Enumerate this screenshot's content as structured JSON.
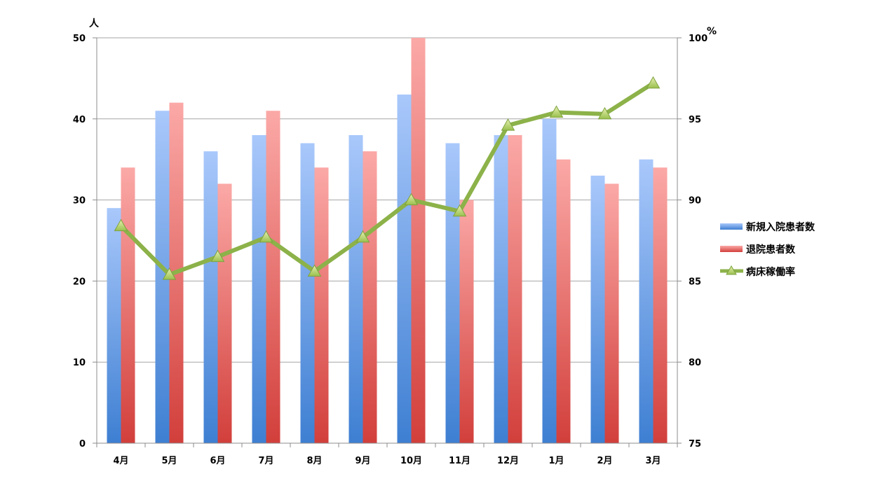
{
  "chart_data": {
    "type": "bar",
    "combo": "bar+line",
    "categories": [
      "4月",
      "5月",
      "6月",
      "7月",
      "8月",
      "9月",
      "10月",
      "11月",
      "12月",
      "1月",
      "2月",
      "3月"
    ],
    "series": [
      {
        "name": "新規入院患者数",
        "type": "bar",
        "axis": "left",
        "color": "#4a86d8",
        "values": [
          29,
          41,
          36,
          38,
          37,
          38,
          43,
          37,
          38,
          40,
          33,
          35
        ]
      },
      {
        "name": "退院患者数",
        "type": "bar",
        "axis": "left",
        "color": "#d8433f",
        "values": [
          34,
          42,
          32,
          41,
          34,
          36,
          50,
          30,
          38,
          35,
          32,
          34
        ]
      },
      {
        "name": "病床稼働率",
        "type": "line",
        "axis": "right",
        "color": "#8cb249",
        "marker": "triangle",
        "values": [
          88.4,
          85.4,
          86.5,
          87.7,
          85.6,
          87.7,
          90.0,
          89.3,
          94.6,
          95.4,
          95.3,
          97.2
        ]
      }
    ],
    "y_left": {
      "unit": "人",
      "range": [
        0,
        50
      ],
      "ticks": [
        "0",
        "10",
        "20",
        "30",
        "40",
        "50"
      ]
    },
    "y_right": {
      "unit": "%",
      "range": [
        75,
        100
      ],
      "ticks": [
        "75",
        "80",
        "85",
        "90",
        "95",
        "100"
      ]
    },
    "grid": true,
    "legend": "right"
  }
}
